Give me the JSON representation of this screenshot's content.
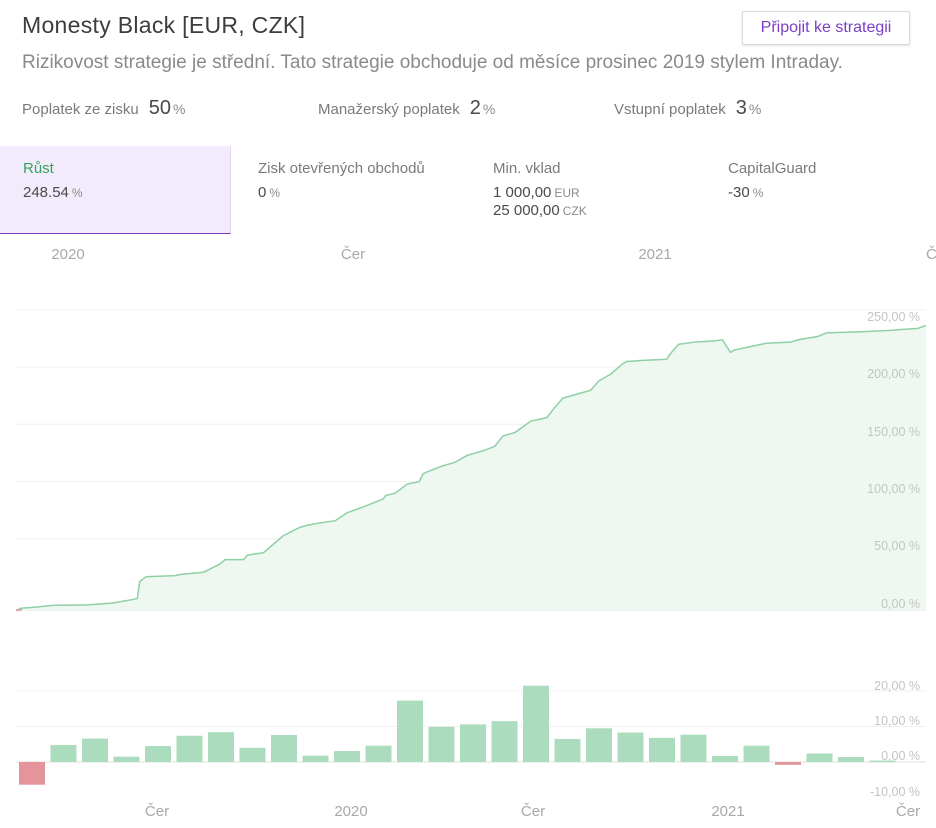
{
  "header": {
    "title": "Monesty Black [EUR, CZK]",
    "connect_button": "Připojit ke strategii",
    "subtitle": "Rizikovost strategie je střední. Tato strategie obchoduje od měsíce prosinec 2019 stylem Intraday."
  },
  "fees": [
    {
      "label": "Poplatek ze zisku",
      "value": "50",
      "unit": "%"
    },
    {
      "label": "Manažerský poplatek",
      "value": "2",
      "unit": "%"
    },
    {
      "label": "Vstupní poplatek",
      "value": "3",
      "unit": "%"
    }
  ],
  "stats": [
    {
      "label": "Růst",
      "value": "248.54",
      "unit": "%",
      "active": true
    },
    {
      "label": "Zisk otevřených obchodů",
      "value": "0",
      "unit": "%"
    },
    {
      "label": "Min. vklad",
      "value": "1 000,00",
      "unit": "EUR",
      "value2": "25 000,00",
      "unit2": "CZK"
    },
    {
      "label": "CapitalGuard",
      "value": "-30",
      "unit": "%"
    }
  ],
  "colors": {
    "accent": "#7b3fc4",
    "growth_line": "#8fd0a4",
    "growth_fill": "#eef8f1",
    "bar_positive": "#abdcbd",
    "bar_negative": "#e4959c",
    "active_tab_bg": "#f2ebfb"
  },
  "chart_data": [
    {
      "type": "area",
      "x_tick_labels": [
        "2020",
        "Čer",
        "2021",
        "Č"
      ],
      "y_tick_labels": [
        "250,00 %",
        "200,00 %",
        "150,00 %",
        "100,00 %",
        "50,00 %",
        "0,00 %"
      ],
      "ylim": [
        0,
        260
      ],
      "grid": true,
      "points": [
        [
          0,
          -0.5
        ],
        [
          0.6,
          1.5
        ],
        [
          2.5,
          2.5
        ],
        [
          4.5,
          4
        ],
        [
          9,
          4.5
        ],
        [
          12,
          6
        ],
        [
          14.5,
          9
        ],
        [
          15.2,
          10
        ],
        [
          15.5,
          25
        ],
        [
          16.3,
          29
        ],
        [
          20,
          30
        ],
        [
          20.5,
          31
        ],
        [
          23.5,
          33
        ],
        [
          25.5,
          40
        ],
        [
          26.2,
          44
        ],
        [
          28.5,
          44
        ],
        [
          29,
          48
        ],
        [
          31,
          50
        ],
        [
          32,
          56
        ],
        [
          33.5,
          65
        ],
        [
          35.5,
          72
        ],
        [
          36.5,
          74
        ],
        [
          38,
          76
        ],
        [
          40,
          78
        ],
        [
          41.5,
          85
        ],
        [
          43.5,
          90
        ],
        [
          46,
          97
        ],
        [
          46.3,
          100
        ],
        [
          47.5,
          102
        ],
        [
          49,
          110
        ],
        [
          50.5,
          112
        ],
        [
          51,
          119
        ],
        [
          52,
          122
        ],
        [
          53.5,
          126
        ],
        [
          55,
          129
        ],
        [
          56.5,
          135
        ],
        [
          58.5,
          139
        ],
        [
          60,
          143
        ],
        [
          61,
          152
        ],
        [
          62.5,
          155
        ],
        [
          64.5,
          165
        ],
        [
          66.5,
          168
        ],
        [
          67.5,
          177
        ],
        [
          68.5,
          185
        ],
        [
          70,
          188
        ],
        [
          72,
          192
        ],
        [
          73,
          200
        ],
        [
          74.5,
          206
        ],
        [
          76,
          215
        ],
        [
          76.5,
          217
        ],
        [
          78.5,
          218
        ],
        [
          81.5,
          219
        ],
        [
          82,
          224
        ],
        [
          83,
          232
        ],
        [
          85,
          234
        ],
        [
          87.5,
          235
        ],
        [
          88.5,
          236
        ],
        [
          89.5,
          225
        ],
        [
          90,
          227
        ],
        [
          92,
          230
        ],
        [
          94,
          233
        ],
        [
          97,
          234
        ],
        [
          98,
          236
        ],
        [
          100.5,
          239
        ],
        [
          101.5,
          242
        ],
        [
          106,
          243
        ],
        [
          109,
          244
        ],
        [
          113,
          246
        ],
        [
          114,
          248.5
        ]
      ]
    },
    {
      "type": "bar",
      "x_tick_labels": [
        "Čer",
        "2020",
        "Čer",
        "2021",
        "Čer"
      ],
      "y_tick_labels": [
        "20,00 %",
        "10,00 %",
        "0,00 %",
        "-10,00 %"
      ],
      "ylim": [
        -10,
        20
      ],
      "grid": true,
      "values": [
        -6.4,
        4.8,
        6.6,
        1.5,
        4.5,
        7.4,
        8.4,
        4.0,
        7.6,
        1.8,
        3.1,
        4.6,
        17.3,
        9.9,
        10.6,
        11.5,
        21.5,
        6.5,
        9.5,
        8.3,
        6.8,
        7.7,
        1.7,
        4.6,
        -0.8,
        2.4,
        1.4,
        0.4
      ]
    }
  ]
}
